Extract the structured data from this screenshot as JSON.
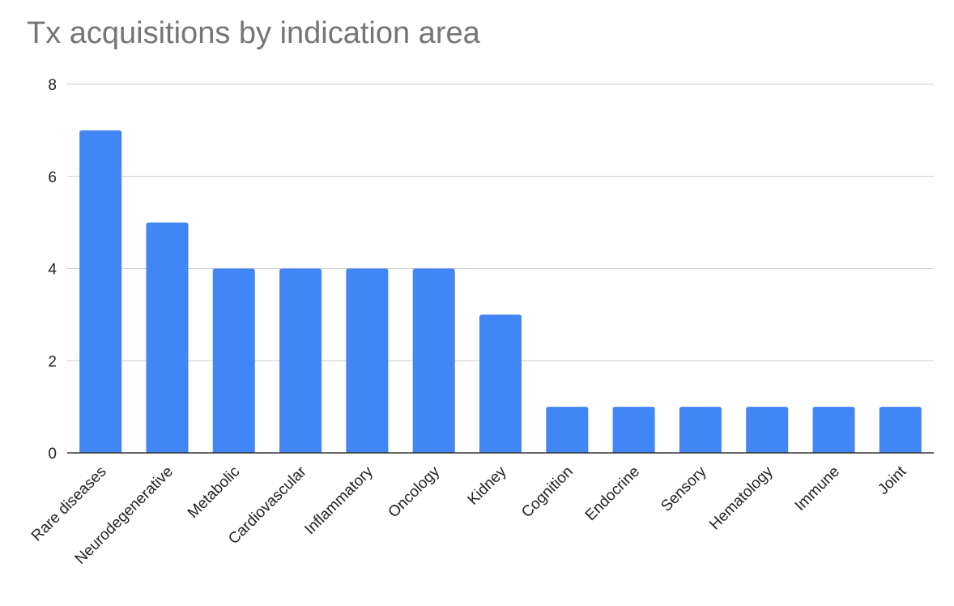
{
  "chart_data": {
    "type": "bar",
    "title": "Tx acquisitions by indication area",
    "xlabel": "",
    "ylabel": "",
    "categories": [
      "Rare diseases",
      "Neurodegenerative",
      "Metabolic",
      "Cardiovascular",
      "Inflammatory",
      "Oncology",
      "Kidney",
      "Cognition",
      "Endocrine",
      "Sensory",
      "Hematology",
      "Immune",
      "Joint"
    ],
    "values": [
      7,
      5,
      4,
      4,
      4,
      4,
      3,
      1,
      1,
      1,
      1,
      1,
      1
    ],
    "ylim": [
      0,
      8
    ],
    "yticks": [
      "0",
      "2",
      "4",
      "6",
      "8"
    ],
    "grid": true,
    "bar_color": "#4285f4",
    "gridline_color": "#cccccc",
    "axis_color": "#333333",
    "label_rotation": "-45"
  }
}
